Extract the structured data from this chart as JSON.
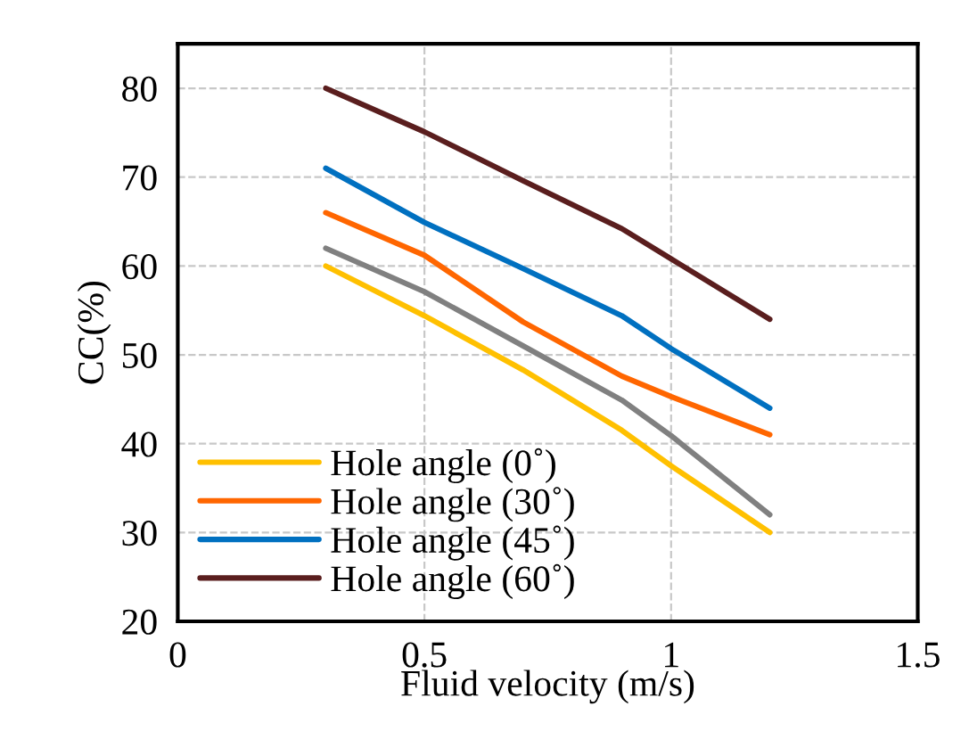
{
  "chart_data": {
    "type": "line",
    "xlabel": "Fluid velocity (m/s)",
    "ylabel": "CC(%)",
    "x": [
      0.3,
      0.5,
      0.7,
      0.9,
      1.0,
      1.2
    ],
    "series": [
      {
        "name": "Hole angle (0˚)",
        "color": "#ffc000",
        "values": [
          60,
          54.4,
          48.3,
          41.5,
          37.5,
          30
        ]
      },
      {
        "name": "Hole angle (30˚)",
        "color": "#ff6600",
        "values": [
          66,
          61.2,
          53.7,
          47.6,
          45.3,
          41
        ]
      },
      {
        "name": "Hole angle (45˚)",
        "color": "#0070c0",
        "values": [
          71,
          64.9,
          59.7,
          54.4,
          50.7,
          44
        ]
      },
      {
        "name": "Hole angle (60˚)",
        "color": "#5a1e1e",
        "values": [
          80,
          75.1,
          69.6,
          64.2,
          60.8,
          54
        ]
      },
      {
        "color": "#808080",
        "values": [
          62,
          57.1,
          51,
          44.9,
          40.9,
          32
        ]
      }
    ],
    "xlim": [
      0,
      1.5
    ],
    "xticks": [
      0,
      0.5,
      1,
      1.5
    ],
    "ylim": [
      20,
      85
    ],
    "yticks": [
      20,
      30,
      40,
      50,
      60,
      70,
      80
    ],
    "grid": true,
    "legend": "bottom left",
    "marker": "none",
    "line_style": "solid"
  }
}
